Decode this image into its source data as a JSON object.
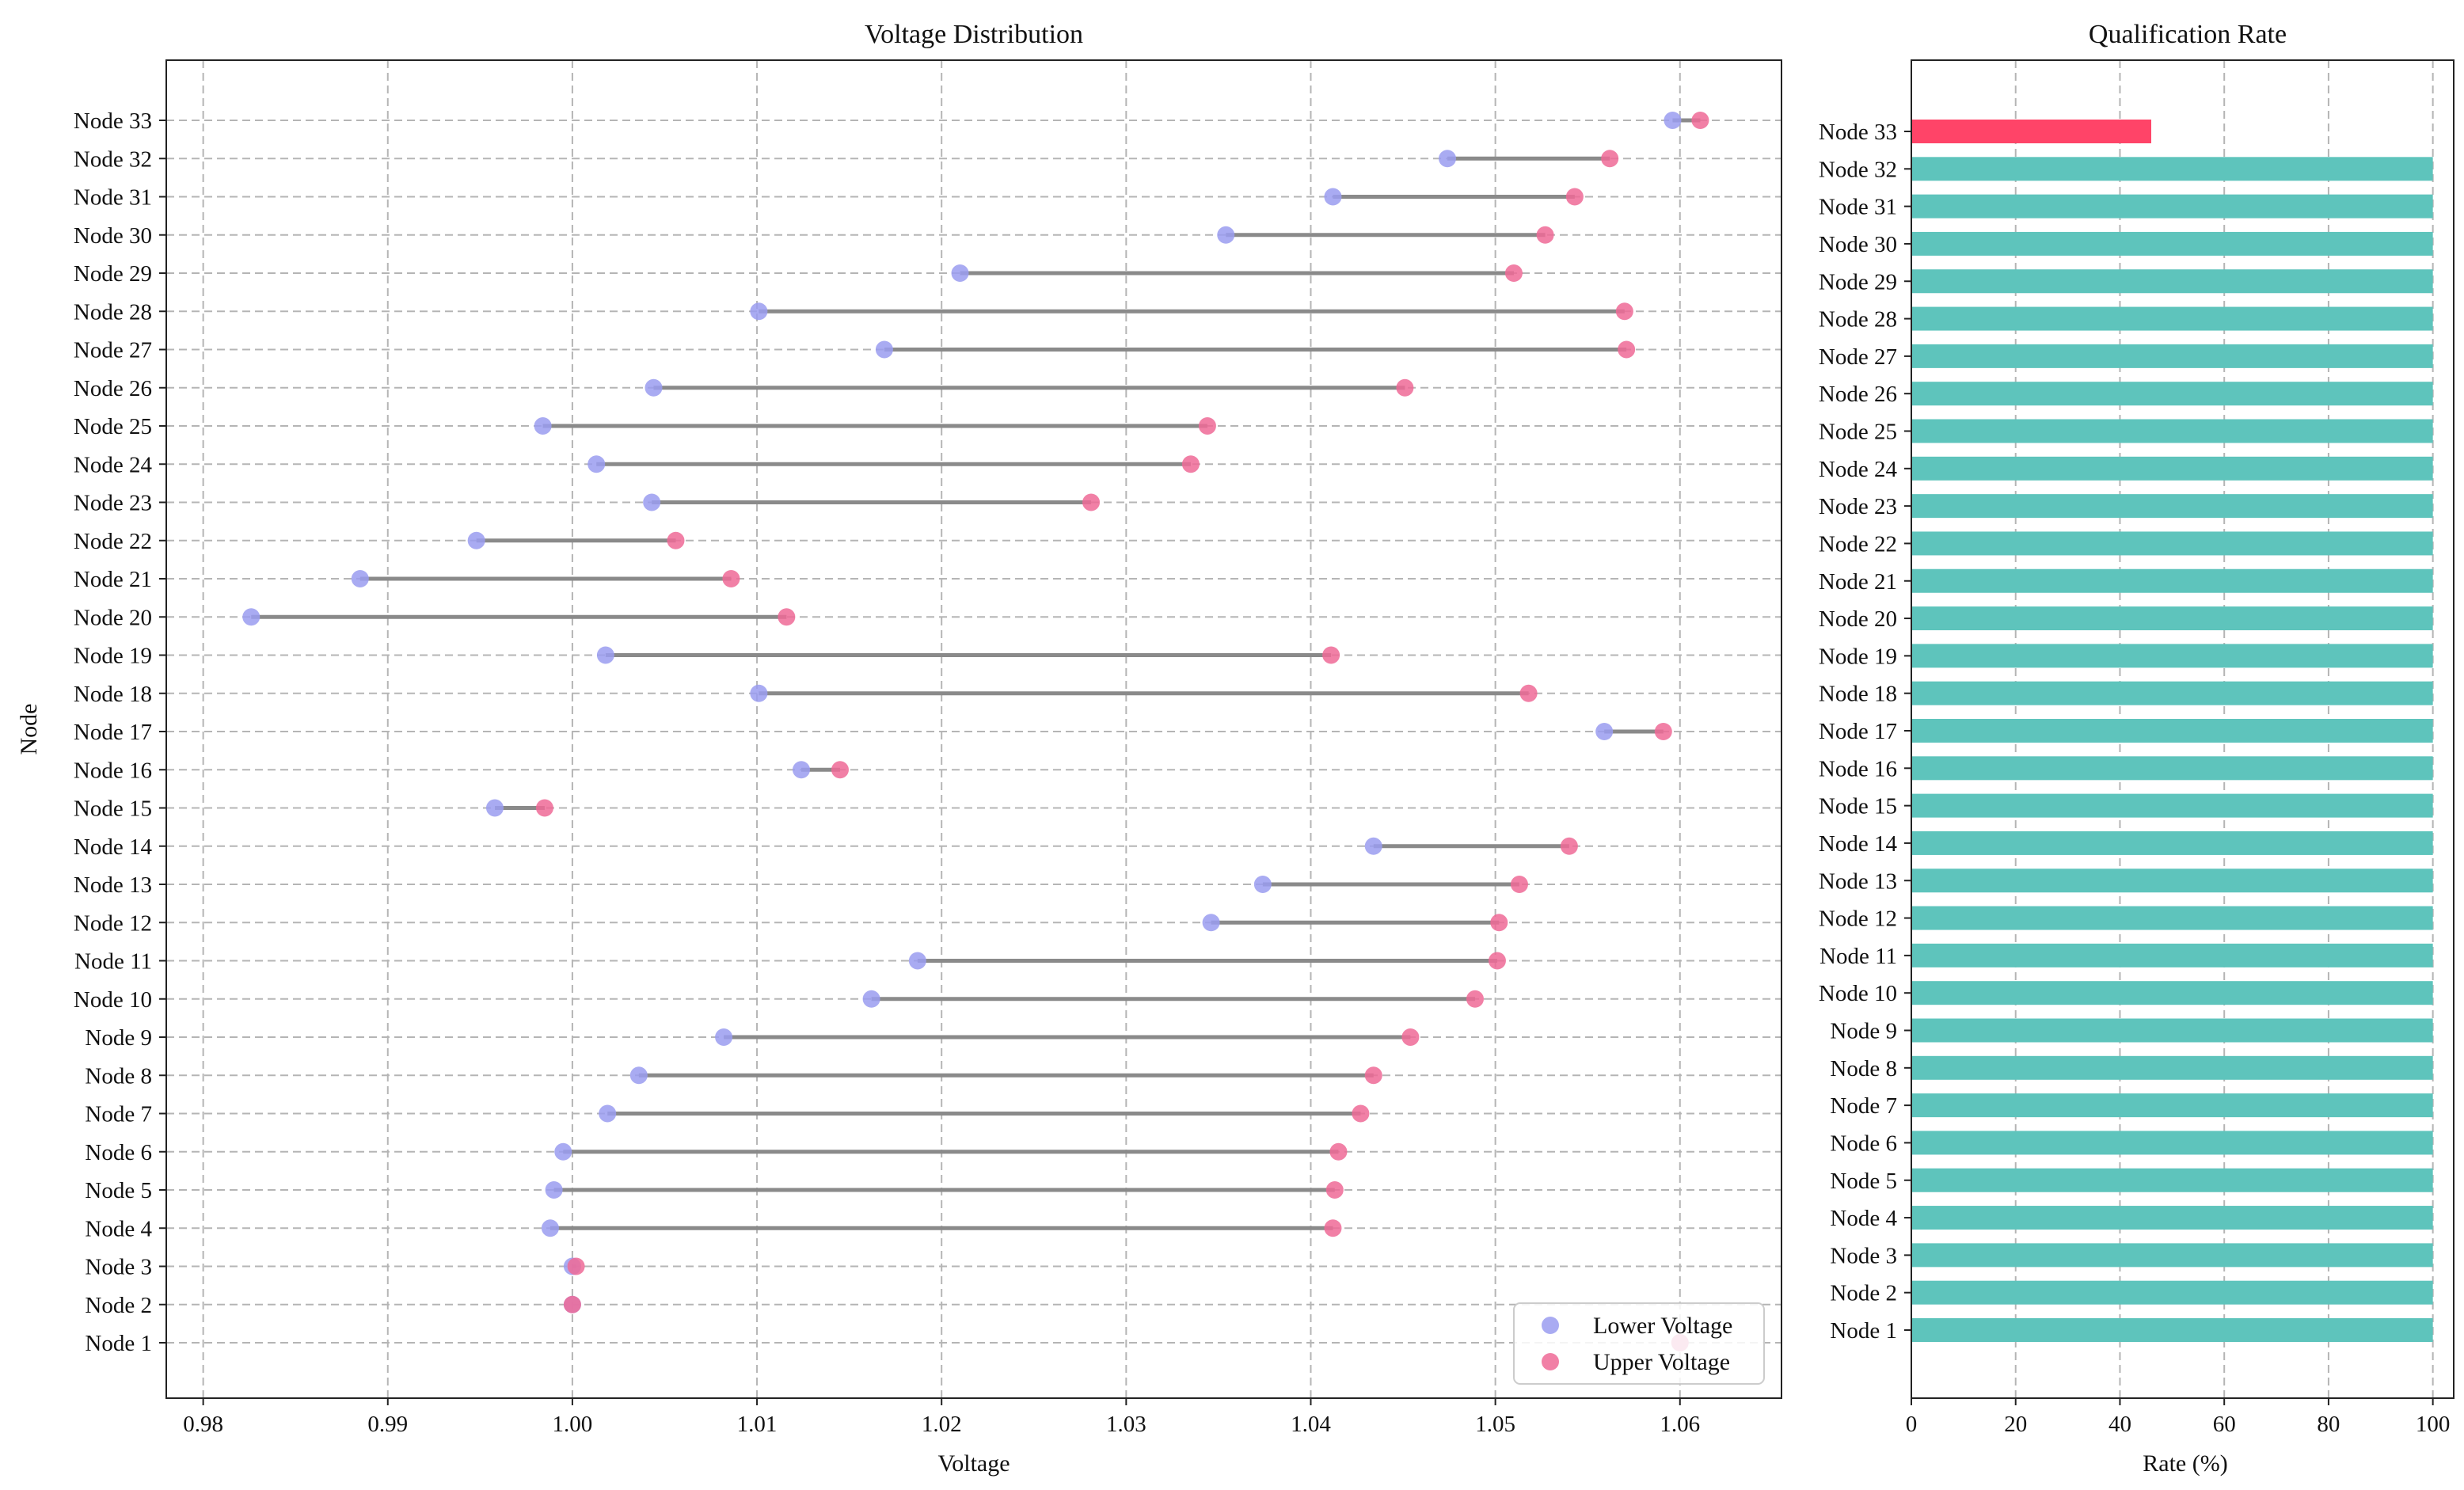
{
  "chart_data": [
    {
      "type": "dumbbell",
      "title": "Voltage Distribution",
      "xlabel": "Voltage",
      "ylabel": "Node",
      "xlim": [
        0.978,
        1.0655
      ],
      "xticks": [
        0.98,
        0.99,
        1.0,
        1.01,
        1.02,
        1.03,
        1.04,
        1.05,
        1.06
      ],
      "xtick_labels": [
        "0.98",
        "0.99",
        "1.00",
        "1.01",
        "1.02",
        "1.03",
        "1.04",
        "1.05",
        "1.06"
      ],
      "grid": true,
      "legend": {
        "position": "bottom-right",
        "entries": [
          "Lower Voltage",
          "Upper Voltage"
        ]
      },
      "colors": {
        "lower": "#9a9cf0",
        "upper": "#ee6a96",
        "connector": "#8a8a8a"
      },
      "categories": [
        "Node 1",
        "Node 2",
        "Node 3",
        "Node 4",
        "Node 5",
        "Node 6",
        "Node 7",
        "Node 8",
        "Node 9",
        "Node 10",
        "Node 11",
        "Node 12",
        "Node 13",
        "Node 14",
        "Node 15",
        "Node 16",
        "Node 17",
        "Node 18",
        "Node 19",
        "Node 20",
        "Node 21",
        "Node 22",
        "Node 23",
        "Node 24",
        "Node 25",
        "Node 26",
        "Node 27",
        "Node 28",
        "Node 29",
        "Node 30",
        "Node 31",
        "Node 32",
        "Node 33"
      ],
      "lower": [
        1.06,
        1.0,
        1.0,
        0.9988,
        0.999,
        0.9995,
        1.0019,
        1.0036,
        1.0082,
        1.0162,
        1.0187,
        1.0346,
        1.0374,
        1.0434,
        0.9958,
        1.0124,
        1.0559,
        1.0101,
        1.0018,
        0.9826,
        0.9885,
        0.9948,
        1.0043,
        1.0013,
        0.9984,
        1.0044,
        1.0169,
        1.0101,
        1.021,
        1.0354,
        1.0412,
        1.0474,
        1.0596
      ],
      "upper": [
        1.06,
        1.0,
        1.0002,
        1.0412,
        1.0413,
        1.0415,
        1.0427,
        1.0434,
        1.0454,
        1.0489,
        1.0501,
        1.0502,
        1.0513,
        1.054,
        0.9985,
        1.0145,
        1.0591,
        1.0518,
        1.0411,
        1.0116,
        1.0086,
        1.0056,
        1.0281,
        1.0335,
        1.0344,
        1.0451,
        1.0571,
        1.057,
        1.051,
        1.0527,
        1.0543,
        1.0562,
        1.0611
      ]
    },
    {
      "type": "bar",
      "orientation": "horizontal",
      "title": "Qualification Rate",
      "xlabel": "Rate (%)",
      "xlim": [
        0,
        104
      ],
      "xticks": [
        0,
        20,
        40,
        60,
        80,
        100
      ],
      "xtick_labels": [
        "0",
        "20",
        "40",
        "60",
        "80",
        "100"
      ],
      "grid": true,
      "colors": {
        "pass": "#5ec4bc",
        "fail": "#ff4468"
      },
      "categories": [
        "Node 1",
        "Node 2",
        "Node 3",
        "Node 4",
        "Node 5",
        "Node 6",
        "Node 7",
        "Node 8",
        "Node 9",
        "Node 10",
        "Node 11",
        "Node 12",
        "Node 13",
        "Node 14",
        "Node 15",
        "Node 16",
        "Node 17",
        "Node 18",
        "Node 19",
        "Node 20",
        "Node 21",
        "Node 22",
        "Node 23",
        "Node 24",
        "Node 25",
        "Node 26",
        "Node 27",
        "Node 28",
        "Node 29",
        "Node 30",
        "Node 31",
        "Node 32",
        "Node 33"
      ],
      "values": [
        100,
        100,
        100,
        100,
        100,
        100,
        100,
        100,
        100,
        100,
        100,
        100,
        100,
        100,
        100,
        100,
        100,
        100,
        100,
        100,
        100,
        100,
        100,
        100,
        100,
        100,
        100,
        100,
        100,
        100,
        100,
        100,
        46
      ]
    }
  ]
}
